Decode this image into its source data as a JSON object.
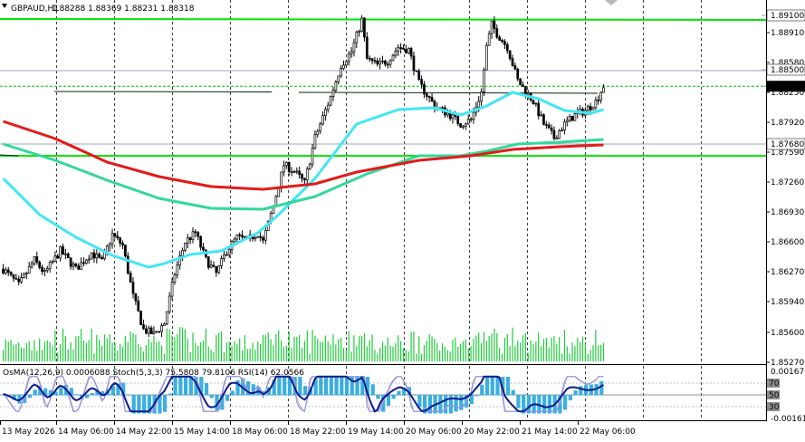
{
  "header": {
    "symbol": "GBPAUD,H1",
    "ohlc": "1.88288 1.88369 1.88231 1.88318"
  },
  "colors": {
    "grid": "#3c3c3c",
    "candle": "#000000",
    "volume": "#1fcc3a",
    "level_line": "#00e600",
    "ma_cyan": "#42e6f5",
    "ma_teal": "#33d89a",
    "ma_red": "#e31a1a",
    "osma_bar": "#3aaee0",
    "stoch_main": "#7f8fe3",
    "stoch_signal": "#c7a2cf",
    "rsi": "#0a1a8c"
  },
  "price_axis": {
    "ticks": [
      "1.88910",
      "1.88580",
      "1.88250",
      "1.87920",
      "1.87590",
      "1.87260",
      "1.86930",
      "1.86600",
      "1.86270",
      "1.85940",
      "1.85600",
      "1.85270"
    ],
    "labels": [
      {
        "text": "1.89100",
        "kind": "level"
      },
      {
        "text": "1.88500",
        "kind": "level"
      },
      {
        "text": "1.88318",
        "kind": "current"
      },
      {
        "text": "1.87680",
        "kind": "level"
      }
    ]
  },
  "indicator": {
    "legend": "OsMA(12,26,9) 0.0006088  Stoch(5,3,3) 75.5808 79.8106  RSI(14) 62.0566",
    "axis_top": "0.001676",
    "axis_bottom": "-0.001614",
    "levels": [
      "70",
      "50",
      "30"
    ]
  },
  "time_axis": [
    "13 May 2026",
    "14 May 06:00",
    "14 May 22:00",
    "15 May 14:00",
    "18 May 06:00",
    "18 May 22:00",
    "19 May 14:00",
    "20 May 06:00",
    "20 May 22:00",
    "21 May 14:00",
    "22 May 06:00"
  ],
  "chart_data": {
    "type": "candlestick",
    "symbol": "GBPAUD",
    "timeframe": "H1",
    "ylim": [
      1.8522,
      1.894
    ],
    "horizontal_levels": [
      1.891,
      1.885,
      1.8768,
      1.8755
    ],
    "price_path": [
      [
        0,
        1.863
      ],
      [
        6,
        1.8612
      ],
      [
        12,
        1.864
      ],
      [
        16,
        1.8625
      ],
      [
        22,
        1.865
      ],
      [
        28,
        1.863
      ],
      [
        34,
        1.8648
      ],
      [
        38,
        1.8638
      ],
      [
        42,
        1.8668
      ],
      [
        46,
        1.8656
      ],
      [
        50,
        1.86
      ],
      [
        54,
        1.8563
      ],
      [
        58,
        1.8558
      ],
      [
        62,
        1.857
      ],
      [
        66,
        1.8625
      ],
      [
        70,
        1.866
      ],
      [
        74,
        1.867
      ],
      [
        78,
        1.864
      ],
      [
        82,
        1.8625
      ],
      [
        86,
        1.865
      ],
      [
        90,
        1.8665
      ],
      [
        94,
        1.8662
      ],
      [
        98,
        1.867
      ],
      [
        100,
        1.866
      ],
      [
        104,
        1.87
      ],
      [
        108,
        1.8745
      ],
      [
        112,
        1.8738
      ],
      [
        116,
        1.8725
      ],
      [
        120,
        1.8775
      ],
      [
        126,
        1.882
      ],
      [
        130,
        1.8855
      ],
      [
        134,
        1.887
      ],
      [
        138,
        1.8905
      ],
      [
        140,
        1.8862
      ],
      [
        144,
        1.8855
      ],
      [
        148,
        1.886
      ],
      [
        152,
        1.8875
      ],
      [
        156,
        1.8872
      ],
      [
        160,
        1.8835
      ],
      [
        166,
        1.881
      ],
      [
        172,
        1.88
      ],
      [
        176,
        1.879
      ],
      [
        180,
        1.8795
      ],
      [
        184,
        1.8825
      ],
      [
        186,
        1.8875
      ],
      [
        188,
        1.89
      ],
      [
        190,
        1.889
      ],
      [
        194,
        1.8875
      ],
      [
        198,
        1.8838
      ],
      [
        204,
        1.8815
      ],
      [
        208,
        1.879
      ],
      [
        212,
        1.8775
      ],
      [
        216,
        1.879
      ],
      [
        220,
        1.88
      ],
      [
        224,
        1.8805
      ],
      [
        228,
        1.8815
      ],
      [
        231,
        1.8832
      ]
    ],
    "series": [
      {
        "role": "ma_cyan",
        "points": [
          [
            0,
            1.873
          ],
          [
            14,
            1.869
          ],
          [
            28,
            1.8665
          ],
          [
            42,
            1.8645
          ],
          [
            56,
            1.8632
          ],
          [
            62,
            1.8636
          ],
          [
            72,
            1.8646
          ],
          [
            84,
            1.865
          ],
          [
            98,
            1.867
          ],
          [
            106,
            1.869
          ],
          [
            120,
            1.873
          ],
          [
            136,
            1.879
          ],
          [
            152,
            1.8806
          ],
          [
            166,
            1.8808
          ],
          [
            176,
            1.88
          ],
          [
            186,
            1.881
          ],
          [
            196,
            1.8825
          ],
          [
            206,
            1.8818
          ],
          [
            216,
            1.8805
          ],
          [
            226,
            1.8802
          ],
          [
            231,
            1.8806
          ]
        ]
      },
      {
        "role": "ma_teal",
        "points": [
          [
            0,
            1.8768
          ],
          [
            20,
            1.875
          ],
          [
            40,
            1.8728
          ],
          [
            60,
            1.8708
          ],
          [
            80,
            1.8697
          ],
          [
            100,
            1.8696
          ],
          [
            120,
            1.871
          ],
          [
            140,
            1.8735
          ],
          [
            160,
            1.8755
          ],
          [
            176,
            1.8755
          ],
          [
            186,
            1.876
          ],
          [
            198,
            1.8768
          ],
          [
            214,
            1.877
          ],
          [
            231,
            1.8773
          ]
        ]
      },
      {
        "role": "ma_red",
        "points": [
          [
            0,
            1.8793
          ],
          [
            20,
            1.8774
          ],
          [
            40,
            1.8748
          ],
          [
            60,
            1.8732
          ],
          [
            80,
            1.8721
          ],
          [
            100,
            1.8718
          ],
          [
            120,
            1.8724
          ],
          [
            136,
            1.8737
          ],
          [
            160,
            1.875
          ],
          [
            180,
            1.8755
          ],
          [
            196,
            1.8762
          ],
          [
            214,
            1.8765
          ],
          [
            231,
            1.8767
          ]
        ]
      }
    ]
  }
}
